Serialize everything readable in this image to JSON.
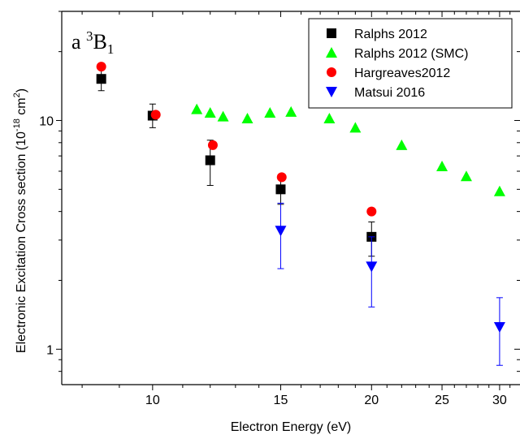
{
  "chart_data": {
    "type": "scatter",
    "title": "",
    "annotation": {
      "text": "a ",
      "sup": "3",
      "main": "B",
      "sub": "1"
    },
    "xlabel": "Electron Energy (eV)",
    "ylabel": {
      "pre": "Electronic Excitation Cross section (10",
      "sup": "-18",
      "mid": " cm",
      "sup2": "2",
      "post": ")"
    },
    "x_scale": "log",
    "y_scale": "log",
    "xlim": [
      7.5,
      32
    ],
    "ylim": [
      0.7,
      30
    ],
    "x_ticks": [
      {
        "value": 10,
        "label": "10"
      },
      {
        "value": 15,
        "label": "15"
      },
      {
        "value": 20,
        "label": "20"
      },
      {
        "value": 25,
        "label": "25"
      },
      {
        "value": 30,
        "label": "30"
      }
    ],
    "y_ticks": [
      {
        "value": 1,
        "label": "1"
      },
      {
        "value": 10,
        "label": "10"
      }
    ],
    "grid": false,
    "legend_position": "top-right",
    "series": [
      {
        "name": "Ralphs 2012",
        "marker": "square",
        "color": "#000000",
        "points": [
          {
            "x": 8.5,
            "y": 15.2,
            "ylo": 13.5,
            "yhi": 16.9
          },
          {
            "x": 10.0,
            "y": 10.5,
            "ylo": 9.3,
            "yhi": 11.8
          },
          {
            "x": 12.0,
            "y": 6.7,
            "ylo": 5.2,
            "yhi": 8.2
          },
          {
            "x": 15.0,
            "y": 5.0,
            "ylo": 4.3,
            "yhi": 5.7
          },
          {
            "x": 20.0,
            "y": 3.1,
            "ylo": 2.55,
            "yhi": 3.6
          }
        ]
      },
      {
        "name": "Ralphs 2012 (SMC)",
        "marker": "triangle-up",
        "color": "#00ff00",
        "points": [
          {
            "x": 11.5,
            "y": 11.2
          },
          {
            "x": 12.0,
            "y": 10.8
          },
          {
            "x": 12.5,
            "y": 10.4
          },
          {
            "x": 13.5,
            "y": 10.2
          },
          {
            "x": 14.5,
            "y": 10.8
          },
          {
            "x": 15.5,
            "y": 10.9
          },
          {
            "x": 17.5,
            "y": 10.2
          },
          {
            "x": 19.0,
            "y": 9.3
          },
          {
            "x": 22.0,
            "y": 7.8
          },
          {
            "x": 25.0,
            "y": 6.3
          },
          {
            "x": 27.0,
            "y": 5.7
          },
          {
            "x": 30.0,
            "y": 4.9
          }
        ]
      },
      {
        "name": "Hargreaves2012",
        "marker": "circle",
        "color": "#ff0000",
        "points": [
          {
            "x": 8.5,
            "y": 17.2
          },
          {
            "x": 10.1,
            "y": 10.6
          },
          {
            "x": 12.1,
            "y": 7.8
          },
          {
            "x": 15.05,
            "y": 5.65
          },
          {
            "x": 20.0,
            "y": 4.0
          }
        ]
      },
      {
        "name": "Matsui 2016",
        "marker": "triangle-down",
        "color": "#0000ff",
        "points": [
          {
            "x": 15.0,
            "y": 3.3,
            "ylo": 2.25,
            "yhi": 4.35
          },
          {
            "x": 20.0,
            "y": 2.3,
            "ylo": 1.53,
            "yhi": 3.1
          },
          {
            "x": 30.0,
            "y": 1.25,
            "ylo": 0.85,
            "yhi": 1.68
          }
        ]
      }
    ]
  }
}
